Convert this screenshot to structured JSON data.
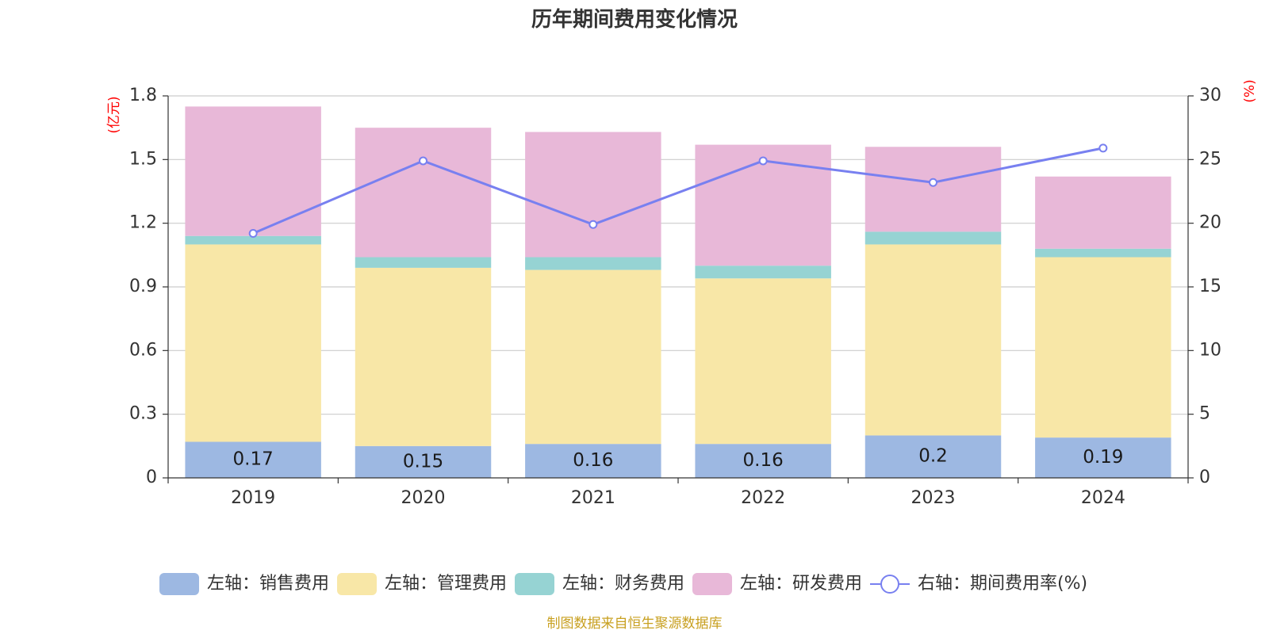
{
  "chart_data": {
    "type": "bar",
    "stacked": true,
    "title": "历年期间费用变化情况",
    "categories": [
      "2019",
      "2020",
      "2021",
      "2022",
      "2023",
      "2024"
    ],
    "left_axis": {
      "unit": "(亿元)",
      "ylim": [
        0,
        1.8
      ],
      "ticks": [
        "0",
        "0.3",
        "0.6",
        "0.9",
        "1.2",
        "1.5",
        "1.8"
      ]
    },
    "right_axis": {
      "unit": "(%)",
      "ylim": [
        0,
        30
      ],
      "ticks": [
        "0",
        "5",
        "10",
        "15",
        "20",
        "25",
        "30"
      ]
    },
    "series": [
      {
        "name": "左轴：销售费用",
        "axis": "left",
        "color": "#9db8e2",
        "values": [
          0.17,
          0.15,
          0.16,
          0.16,
          0.2,
          0.19
        ],
        "labels": [
          "0.17",
          "0.15",
          "0.16",
          "0.16",
          "0.2",
          "0.19"
        ]
      },
      {
        "name": "左轴：管理费用",
        "axis": "left",
        "color": "#f8e7a7",
        "values": [
          0.93,
          0.84,
          0.82,
          0.78,
          0.9,
          0.85
        ]
      },
      {
        "name": "左轴：财务费用",
        "axis": "left",
        "color": "#96d3d3",
        "values": [
          0.04,
          0.05,
          0.06,
          0.06,
          0.06,
          0.04
        ]
      },
      {
        "name": "左轴：研发费用",
        "axis": "left",
        "color": "#e8b8d8",
        "values": [
          0.61,
          0.61,
          0.59,
          0.57,
          0.4,
          0.34
        ]
      },
      {
        "name": "右轴：期间费用率(%)",
        "axis": "right",
        "type": "line",
        "color": "#7880f0",
        "values": [
          19.2,
          24.9,
          19.9,
          24.9,
          23.2,
          25.9
        ]
      }
    ],
    "grid": true,
    "legend_position": "bottom"
  },
  "footer": {
    "source": "制图数据来自恒生聚源数据库"
  }
}
